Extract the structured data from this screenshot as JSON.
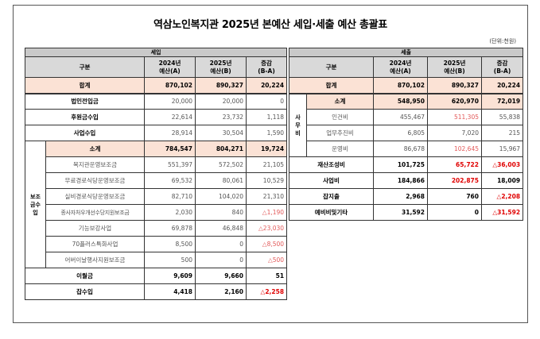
{
  "title": "역삼노인복지관 2025년 본예산 세입·세출 예산 총괄표",
  "unit": "(단위:천원)",
  "income": {
    "group": "세입",
    "headers": {
      "category": "구분",
      "y2024": "2024년\n예산(A)",
      "y2025": "2025년\n예산(B)",
      "diff": "증감\n(B-A)"
    },
    "total": {
      "label": "합계",
      "a": "870,102",
      "b": "890,327",
      "d": "20,224"
    },
    "rows_top": [
      {
        "label": "법인전입금",
        "a": "20,000",
        "b": "20,000",
        "d": "0"
      },
      {
        "label": "후원금수입",
        "a": "22,614",
        "b": "23,732",
        "d": "1,118"
      },
      {
        "label": "사업수입",
        "a": "28,914",
        "b": "30,504",
        "d": "1,590"
      }
    ],
    "subsidy_label": "보조금수입",
    "subsidy_subtotal": {
      "label": "소계",
      "a": "784,547",
      "b": "804,271",
      "d": "19,724"
    },
    "subsidy_rows": [
      {
        "label": "복지관운영보조금",
        "a": "551,397",
        "b": "572,502",
        "d": "21,105"
      },
      {
        "label": "무료경로식당운영보조금",
        "a": "69,532",
        "b": "80,061",
        "d": "10,529"
      },
      {
        "label": "실비경로식당운영보조금",
        "a": "82,710",
        "b": "104,020",
        "d": "21,310"
      },
      {
        "label": "종사자처우개선수당지원보조금",
        "a": "2,030",
        "b": "840",
        "d": "△1,190"
      },
      {
        "label": "기능보강사업",
        "a": "69,878",
        "b": "46,848",
        "d": "△23,030"
      },
      {
        "label": "70플러스특화사업",
        "a": "8,500",
        "b": "0",
        "d": "△8,500"
      },
      {
        "label": "어버이날행사지원보조금",
        "a": "500",
        "b": "0",
        "d": "△500"
      }
    ],
    "rows_bottom": [
      {
        "label": "이월금",
        "a": "9,609",
        "b": "9,660",
        "d": "51"
      },
      {
        "label": "잡수입",
        "a": "4,418",
        "b": "2,160",
        "d": "△2,258"
      }
    ]
  },
  "expense": {
    "group": "세출",
    "headers": {
      "category": "구분",
      "y2024": "2024년\n예산(A)",
      "y2025": "2025년\n예산(B)",
      "diff": "증감\n(B-A)"
    },
    "total": {
      "label": "합계",
      "a": "870,102",
      "b": "890,327",
      "d": "20,224"
    },
    "office_label": "사무비",
    "office_subtotal": {
      "label": "소계",
      "a": "548,950",
      "b": "620,970",
      "d": "72,019"
    },
    "office_rows": [
      {
        "label": "인건비",
        "a": "455,467",
        "b": "511,305",
        "d": "55,838"
      },
      {
        "label": "업무추진비",
        "a": "6,805",
        "b": "7,020",
        "d": "215"
      },
      {
        "label": "운영비",
        "a": "86,678",
        "b": "102,645",
        "d": "15,967"
      }
    ],
    "rows": [
      {
        "label": "재산조성비",
        "a": "101,725",
        "b": "65,722",
        "d": "△36,003"
      },
      {
        "label": "사업비",
        "a": "184,866",
        "b": "202,875",
        "d": "18,009"
      },
      {
        "label": "잡지출",
        "a": "2,968",
        "b": "760",
        "d": "△2,208"
      },
      {
        "label": "예비비및기타",
        "a": "31,592",
        "b": "0",
        "d": "△31,592"
      }
    ]
  }
}
